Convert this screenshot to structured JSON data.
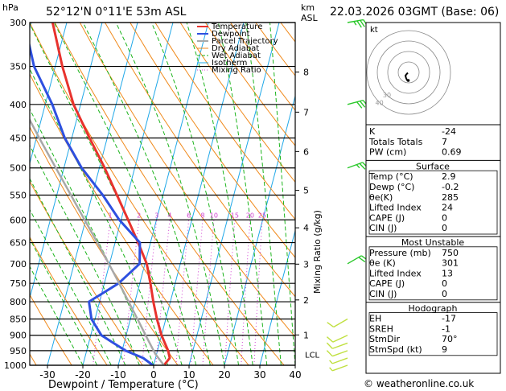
{
  "header": {
    "location": "52°12'N  0°11'E  53m  ASL",
    "datetime": "22.03.2026  03GMT  (Base: 06)",
    "hpa_label": "hPa",
    "km_label": "km",
    "asl_label": "ASL"
  },
  "legend": [
    "Temperature",
    "Dewpoint",
    "Parcel Trajectory",
    "Dry Adiabat",
    "Wet Adiabat",
    "Isotherm",
    "Mixing Ratio"
  ],
  "colors": {
    "temperature": "#e8322d",
    "dewpoint": "#2e50e0",
    "parcel": "#a8a8a8",
    "dry_adiabat": "#f08a1c",
    "wet_adiabat": "#1cb41c",
    "isotherm": "#20a8e8",
    "mixing_ratio": "#d040d0",
    "wind_barb": "#2ac82a",
    "wind_barb_low": "#c0e040"
  },
  "chart_data": {
    "type": "skew-t",
    "title": "52°12'N  0°11'E  53m  ASL",
    "xlabel": "Dewpoint / Temperature (°C)",
    "ylabel": "hPa",
    "xlim": [
      -35,
      40
    ],
    "x_ticks": [
      -30,
      -20,
      -10,
      0,
      10,
      20,
      30,
      40
    ],
    "pressure_levels": [
      300,
      350,
      400,
      450,
      500,
      550,
      600,
      650,
      700,
      750,
      800,
      850,
      900,
      950,
      1000
    ],
    "altitude_km": [
      {
        "km": "8",
        "p": 357
      },
      {
        "km": "7",
        "p": 411
      },
      {
        "km": "6",
        "p": 472
      },
      {
        "km": "5",
        "p": 541
      },
      {
        "km": "4",
        "p": 617
      },
      {
        "km": "3",
        "p": 701
      },
      {
        "km": "2",
        "p": 795
      },
      {
        "km": "1",
        "p": 899
      }
    ],
    "lcl": {
      "label": "LCL",
      "p": 962
    },
    "mixing_ratio_axis_label": "Mixing Ratio (g/kg)",
    "mixing_ratio_labels": [
      "1",
      "2",
      "3",
      "4",
      "6",
      "8",
      "10",
      "15",
      "20",
      "25"
    ],
    "series": [
      {
        "name": "Temperature",
        "points": [
          [
            1000,
            2.9
          ],
          [
            975,
            4.0
          ],
          [
            950,
            3.0
          ],
          [
            925,
            1.5
          ],
          [
            900,
            0.0
          ],
          [
            850,
            -2.5
          ],
          [
            800,
            -4.8
          ],
          [
            750,
            -7.0
          ],
          [
            700,
            -9.5
          ],
          [
            650,
            -13.5
          ],
          [
            600,
            -18.0
          ],
          [
            550,
            -23.0
          ],
          [
            500,
            -28.5
          ],
          [
            450,
            -35.0
          ],
          [
            400,
            -42.0
          ],
          [
            350,
            -48.0
          ],
          [
            300,
            -54.0
          ]
        ]
      },
      {
        "name": "Dewpoint",
        "points": [
          [
            1000,
            -0.2
          ],
          [
            975,
            -3.5
          ],
          [
            950,
            -9.0
          ],
          [
            925,
            -13.0
          ],
          [
            900,
            -17.0
          ],
          [
            850,
            -21.0
          ],
          [
            800,
            -23.0
          ],
          [
            750,
            -16.0
          ],
          [
            700,
            -11.5
          ],
          [
            650,
            -13.0
          ],
          [
            600,
            -20.5
          ],
          [
            550,
            -27.0
          ],
          [
            500,
            -35.0
          ],
          [
            450,
            -42.0
          ],
          [
            400,
            -48.0
          ],
          [
            350,
            -56.0
          ],
          [
            300,
            -62.0
          ]
        ]
      },
      {
        "name": "Parcel Trajectory",
        "points": [
          [
            1000,
            2.9
          ],
          [
            962,
            -0.3
          ],
          [
            900,
            -4.5
          ],
          [
            850,
            -8.0
          ],
          [
            800,
            -11.8
          ],
          [
            750,
            -15.8
          ],
          [
            700,
            -20.2
          ],
          [
            650,
            -25.0
          ],
          [
            600,
            -30.3
          ],
          [
            550,
            -36.0
          ],
          [
            500,
            -42.3
          ],
          [
            450,
            -49.2
          ],
          [
            400,
            -56.7
          ],
          [
            350,
            -64.5
          ],
          [
            300,
            -72.8
          ]
        ]
      }
    ],
    "winds": [
      {
        "p": 300,
        "dir": 260,
        "kt": 35
      },
      {
        "p": 400,
        "dir": 255,
        "kt": 30
      },
      {
        "p": 500,
        "dir": 250,
        "kt": 25
      },
      {
        "p": 700,
        "dir": 240,
        "kt": 20
      },
      {
        "p": 850,
        "dir": 60,
        "kt": 10
      },
      {
        "p": 900,
        "dir": 65,
        "kt": 10
      },
      {
        "p": 925,
        "dir": 70,
        "kt": 10
      },
      {
        "p": 950,
        "dir": 70,
        "kt": 10
      },
      {
        "p": 975,
        "dir": 70,
        "kt": 9
      },
      {
        "p": 1000,
        "dir": 70,
        "kt": 8
      }
    ]
  },
  "hodograph": {
    "label": "kt",
    "ring_labels": [
      "10",
      "20",
      "30",
      "40"
    ],
    "points": [
      [
        -1.0,
        -0.5
      ],
      [
        -2.5,
        -2.0
      ],
      [
        -4.0,
        -4.0
      ],
      [
        -3.2,
        -7.0
      ],
      [
        -2.0,
        -9.5
      ],
      [
        -0.5,
        -10.0
      ]
    ]
  },
  "indices": {
    "rows": [
      {
        "label": "K",
        "value": "-24"
      },
      {
        "label": "Totals Totals",
        "value": "7"
      },
      {
        "label": "PW (cm)",
        "value": "0.69"
      }
    ]
  },
  "surface": {
    "title": "Surface",
    "rows": [
      {
        "label": "Temp (°C)",
        "value": "2.9"
      },
      {
        "label": "Dewp (°C)",
        "value": "-0.2"
      },
      {
        "label": "θe(K)",
        "value": "285"
      },
      {
        "label": "Lifted Index",
        "value": "24"
      },
      {
        "label": "CAPE (J)",
        "value": "0"
      },
      {
        "label": "CIN (J)",
        "value": "0"
      }
    ]
  },
  "most_unstable": {
    "title": "Most Unstable",
    "rows": [
      {
        "label": "Pressure (mb)",
        "value": "750"
      },
      {
        "label": "θe (K)",
        "value": "301"
      },
      {
        "label": "Lifted Index",
        "value": "13"
      },
      {
        "label": "CAPE (J)",
        "value": "0"
      },
      {
        "label": "CIN (J)",
        "value": "0"
      }
    ]
  },
  "hodo_table": {
    "title": "Hodograph",
    "rows": [
      {
        "label": "EH",
        "value": "-17"
      },
      {
        "label": "SREH",
        "value": "-1"
      },
      {
        "label": "StmDir",
        "value": "70°"
      },
      {
        "label": "StmSpd (kt)",
        "value": "9"
      }
    ]
  },
  "footer": {
    "credit": "© weatheronline.co.uk"
  }
}
